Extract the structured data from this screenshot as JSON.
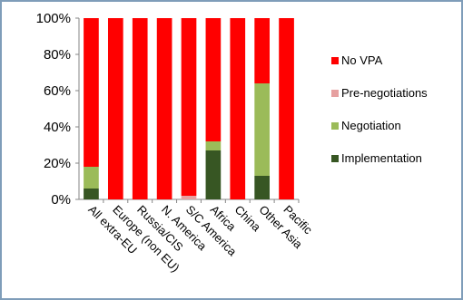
{
  "chart_data": {
    "type": "bar",
    "stacked": true,
    "percent": true,
    "categories": [
      "All extra-EU",
      "Europe (non EU)",
      "Russia/CIS",
      "N. America",
      "S/C America",
      "Africa",
      "China",
      "Other Asia",
      "Pacific"
    ],
    "series": [
      {
        "name": "Implementation",
        "color": "#375623",
        "values": [
          6,
          0,
          0,
          0,
          0,
          27,
          0,
          13,
          0
        ]
      },
      {
        "name": "Negotiation",
        "color": "#9bbb59",
        "values": [
          12,
          0,
          0,
          0,
          0,
          5,
          0,
          51,
          0
        ]
      },
      {
        "name": "Pre-negotiations",
        "color": "#e6a0a0",
        "values": [
          0,
          0,
          0,
          0,
          2,
          0,
          0,
          0,
          0
        ]
      },
      {
        "name": "No VPA",
        "color": "#ff0000",
        "values": [
          82,
          100,
          100,
          100,
          98,
          68,
          100,
          36,
          100
        ]
      }
    ],
    "legend_order": [
      "No VPA",
      "Pre-negotiations",
      "Negotiation",
      "Implementation"
    ],
    "ylim": [
      0,
      100
    ],
    "yticks": [
      "0%",
      "20%",
      "40%",
      "60%",
      "80%",
      "100%"
    ],
    "legend_position": "right",
    "grid": false
  }
}
